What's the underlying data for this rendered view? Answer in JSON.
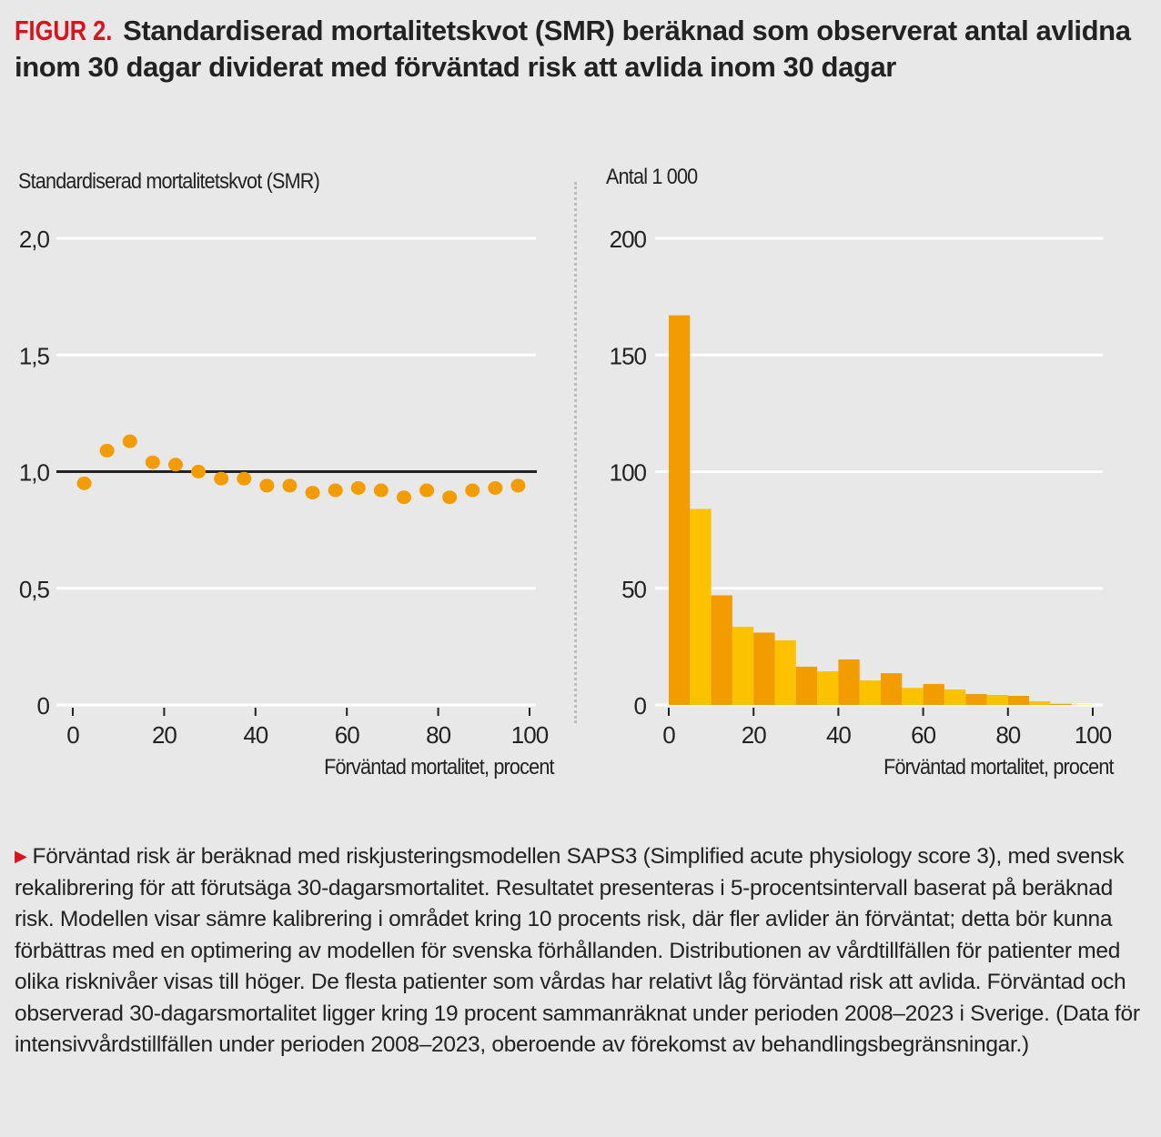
{
  "figure": {
    "label": "FIGUR 2.",
    "title": "Standardiserad mortalitetskvot (SMR) beräknad som observerat antal avlidna inom 30 dagar dividerat med förväntad risk att avlida inom 30 dagar"
  },
  "caption": {
    "arrow_icon": "triangle-right",
    "text": "Förväntad risk är beräknad med riskjusteringsmodellen SAPS3 (Simplified acute physiology score 3), med svensk rekalibrering för att förutsäga 30-dagarsmortalitet. Resultatet presenteras i 5-procentsintervall baserat på beräknad risk. Modellen visar sämre kalibrering i området kring 10 procents risk, där fler avlider än förväntat; detta bör kunna förbättras med en optimering av modellen för svenska förhållanden. Distributionen av vårdtillfällen för patienter med olika risknivåer visas till höger. De flesta patienter som vårdas har relativt låg förväntad risk att avlida. Förväntad och observerad 30-dagarsmortalitet ligger kring 19 procent sammanräknat under perioden 2008–2023 i Sverige. (Data för intensivvårdstillfällen under perioden 2008–2023, oberoende av förekomst av behandlingsbegränsningar.)"
  },
  "chart_data": [
    {
      "type": "scatter",
      "title": "",
      "ylabel": "Standardiserad mortalitetskvot (SMR)",
      "xlabel": "Förväntad mortalitet, procent",
      "xlim": [
        0,
        100
      ],
      "ylim": [
        0,
        2.0
      ],
      "xticks": [
        0,
        20,
        40,
        60,
        80,
        100
      ],
      "xtick_labels": [
        "0",
        "20",
        "40",
        "60",
        "80",
        "100"
      ],
      "yticks": [
        0,
        0.5,
        1.0,
        1.5,
        2.0
      ],
      "ytick_labels": [
        "0",
        "0,5",
        "1,0",
        "1,5",
        "2,0"
      ],
      "reference_line": 1.0,
      "grid": true,
      "color": "#f39c00",
      "x": [
        2.5,
        7.5,
        12.5,
        17.5,
        22.5,
        27.5,
        32.5,
        37.5,
        42.5,
        47.5,
        52.5,
        57.5,
        62.5,
        67.5,
        72.5,
        77.5,
        82.5,
        87.5,
        92.5,
        97.5
      ],
      "y": [
        0.95,
        1.09,
        1.13,
        1.04,
        1.03,
        1.0,
        0.97,
        0.97,
        0.94,
        0.94,
        0.91,
        0.92,
        0.93,
        0.92,
        0.89,
        0.92,
        0.89,
        0.92,
        0.93,
        0.94
      ]
    },
    {
      "type": "bar",
      "title": "",
      "ylabel": "Antal 1 000",
      "xlabel": "Förväntad mortalitet, procent",
      "xlim": [
        0,
        100
      ],
      "ylim": [
        0,
        200
      ],
      "xticks": [
        0,
        20,
        40,
        60,
        80,
        100
      ],
      "xtick_labels": [
        "0",
        "20",
        "40",
        "60",
        "80",
        "100"
      ],
      "yticks": [
        0,
        50,
        100,
        150,
        200
      ],
      "ytick_labels": [
        "0",
        "50",
        "100",
        "150",
        "200"
      ],
      "grid": true,
      "colors": [
        "#f39c00",
        "#fcc200"
      ],
      "bin_width": 5,
      "bin_starts": [
        0,
        5,
        10,
        15,
        20,
        25,
        30,
        35,
        40,
        45,
        50,
        55,
        60,
        65,
        70,
        75,
        80,
        85,
        90,
        95
      ],
      "values": [
        167,
        84,
        47,
        33.5,
        31,
        27.7,
        16.4,
        14.4,
        19.5,
        10.5,
        13.6,
        7.3,
        9,
        6.6,
        4.7,
        4.3,
        3.9,
        1.6,
        0.5,
        0.1
      ]
    }
  ]
}
